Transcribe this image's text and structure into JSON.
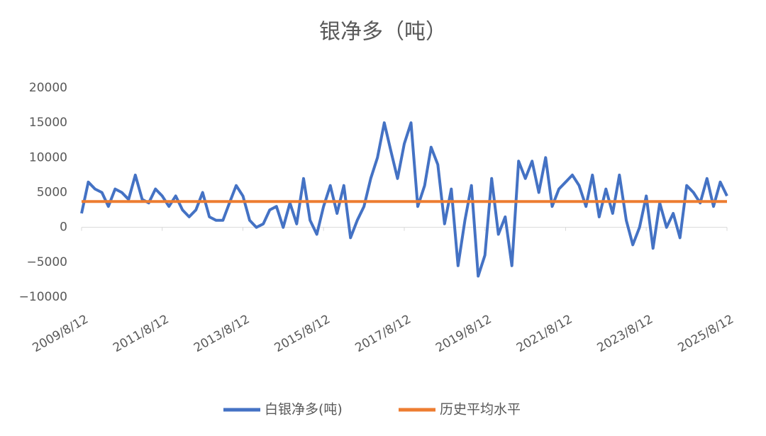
{
  "chart_data": {
    "type": "line",
    "title": "银净多（吨）",
    "x": [
      "2009/8/12",
      "2009/10/12",
      "2009/12/12",
      "2010/2/12",
      "2010/4/12",
      "2010/6/12",
      "2010/8/12",
      "2010/10/12",
      "2010/12/12",
      "2011/2/12",
      "2011/4/12",
      "2011/6/12",
      "2011/8/12",
      "2011/10/12",
      "2011/12/12",
      "2012/2/12",
      "2012/4/12",
      "2012/6/12",
      "2012/8/12",
      "2012/10/12",
      "2012/12/12",
      "2013/2/12",
      "2013/4/12",
      "2013/6/12",
      "2013/8/12",
      "2013/10/12",
      "2013/12/12",
      "2014/2/12",
      "2014/4/12",
      "2014/6/12",
      "2014/8/12",
      "2014/10/12",
      "2014/12/12",
      "2015/2/12",
      "2015/4/12",
      "2015/6/12",
      "2015/8/12",
      "2015/10/12",
      "2015/12/12",
      "2016/2/12",
      "2016/4/12",
      "2016/6/12",
      "2016/8/12",
      "2016/10/12",
      "2016/12/12",
      "2017/2/12",
      "2017/4/12",
      "2017/6/12",
      "2017/8/12",
      "2017/10/12",
      "2017/12/12",
      "2018/2/12",
      "2018/4/12",
      "2018/6/12",
      "2018/8/12",
      "2018/10/12",
      "2018/12/12",
      "2019/2/12",
      "2019/4/12",
      "2019/6/12",
      "2019/8/12",
      "2019/10/12",
      "2019/12/12",
      "2020/2/12",
      "2020/4/12",
      "2020/6/12",
      "2020/8/12",
      "2020/10/12",
      "2020/12/12",
      "2021/2/12",
      "2021/4/12",
      "2021/6/12",
      "2021/8/12",
      "2021/10/12",
      "2021/12/12",
      "2022/2/12",
      "2022/4/12",
      "2022/6/12",
      "2022/8/12",
      "2022/10/12",
      "2022/12/12",
      "2023/2/12",
      "2023/4/12",
      "2023/6/12",
      "2023/8/12",
      "2023/10/12",
      "2023/12/12",
      "2024/2/12",
      "2024/4/12",
      "2024/6/12",
      "2024/8/12",
      "2024/10/12",
      "2024/12/12",
      "2025/2/12",
      "2025/4/12",
      "2025/6/12",
      "2025/8/12"
    ],
    "series": [
      {
        "name": "白银净多(吨)",
        "color": "#4472c4",
        "values": [
          2000,
          6500,
          5500,
          5000,
          3000,
          5500,
          5000,
          4000,
          7500,
          4000,
          3500,
          5500,
          4500,
          3000,
          4500,
          2500,
          1500,
          2500,
          5000,
          1500,
          1000,
          1000,
          3500,
          6000,
          4500,
          1000,
          0,
          500,
          2500,
          3000,
          0,
          3500,
          500,
          7000,
          1000,
          -1000,
          3000,
          6000,
          2000,
          6000,
          -1500,
          1000,
          3000,
          7000,
          10000,
          15000,
          11000,
          7000,
          12000,
          15000,
          3000,
          6000,
          11500,
          9000,
          500,
          5500,
          -5500,
          1000,
          6000,
          -7000,
          -4000,
          7000,
          -1000,
          1500,
          -5500,
          9500,
          7000,
          9500,
          5000,
          10000,
          3000,
          5500,
          6500,
          7500,
          6000,
          3000,
          7500,
          1500,
          5500,
          2000,
          7500,
          1000,
          -2500,
          0,
          4500,
          -3000,
          3500,
          0,
          2000,
          -1500,
          6000,
          5000,
          3500,
          7000,
          3000,
          6500,
          4500
        ]
      },
      {
        "name": "历史平均水平",
        "color": "#ed7d31",
        "x": [
          "2009/8/12",
          "2025/8/12"
        ],
        "values": [
          3700,
          3700
        ]
      }
    ],
    "xlim": [
      "2009/8/12",
      "2025/8/12"
    ],
    "xticks": [
      "2009/8/12",
      "2011/8/12",
      "2013/8/12",
      "2015/8/12",
      "2017/8/12",
      "2019/8/12",
      "2021/8/12",
      "2023/8/12",
      "2025/8/12"
    ],
    "ylim": [
      -10000,
      20000
    ],
    "yticks": [
      {
        "value": -10000,
        "label": "−10000"
      },
      {
        "value": -5000,
        "label": "−5000"
      },
      0,
      5000,
      10000,
      15000,
      20000
    ],
    "legend": "bottom"
  }
}
